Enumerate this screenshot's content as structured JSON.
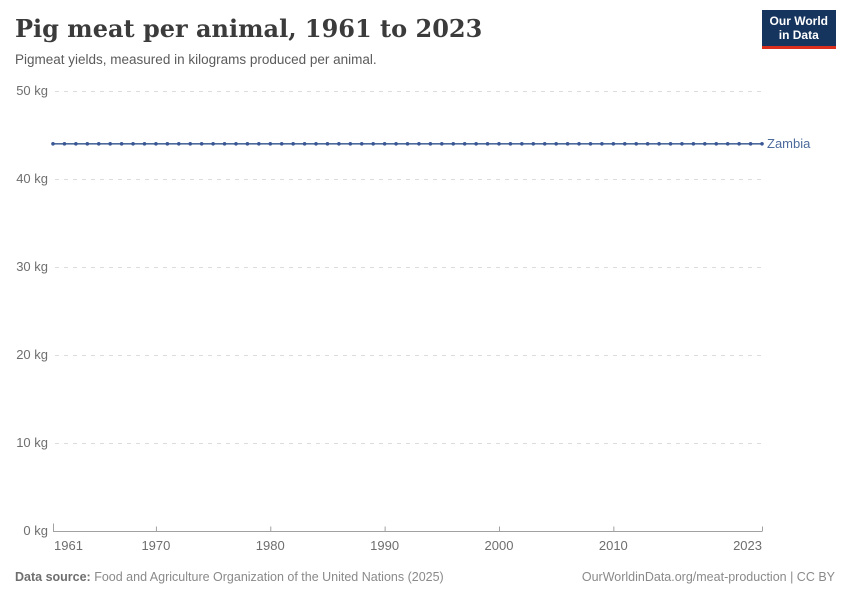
{
  "header": {
    "title": "Pig meat per animal, 1961 to 2023",
    "subtitle": "Pigmeat yields, measured in kilograms produced per animal.",
    "logo": {
      "line1": "Our World",
      "line2": "in Data"
    }
  },
  "chart_data": {
    "type": "line",
    "title": "Pig meat per animal, 1961 to 2023",
    "subtitle": "Pigmeat yields, measured in kilograms produced per animal.",
    "xlabel": "",
    "ylabel": "",
    "xlim": [
      1961,
      2023
    ],
    "ylim": [
      0,
      50
    ],
    "x_ticks": [
      1961,
      1970,
      1980,
      1990,
      2000,
      2010,
      2023
    ],
    "y_ticks": [
      0,
      10,
      20,
      30,
      40,
      50
    ],
    "y_tick_suffix": " kg",
    "grid": "horizontal-dashed",
    "legend_position": "end-of-line-label",
    "x": [
      1961,
      1962,
      1963,
      1964,
      1965,
      1966,
      1967,
      1968,
      1969,
      1970,
      1971,
      1972,
      1973,
      1974,
      1975,
      1976,
      1977,
      1978,
      1979,
      1980,
      1981,
      1982,
      1983,
      1984,
      1985,
      1986,
      1987,
      1988,
      1989,
      1990,
      1991,
      1992,
      1993,
      1994,
      1995,
      1996,
      1997,
      1998,
      1999,
      2000,
      2001,
      2002,
      2003,
      2004,
      2005,
      2006,
      2007,
      2008,
      2009,
      2010,
      2011,
      2012,
      2013,
      2014,
      2015,
      2016,
      2017,
      2018,
      2019,
      2020,
      2021,
      2022,
      2023
    ],
    "series": [
      {
        "name": "Zambia",
        "color": "#4C6A9C",
        "dot_color": "#3a5795",
        "values": [
          44,
          44,
          44,
          44,
          44,
          44,
          44,
          44,
          44,
          44,
          44,
          44,
          44,
          44,
          44,
          44,
          44,
          44,
          44,
          44,
          44,
          44,
          44,
          44,
          44,
          44,
          44,
          44,
          44,
          44,
          44,
          44,
          44,
          44,
          44,
          44,
          44,
          44,
          44,
          44,
          44,
          44,
          44,
          44,
          44,
          44,
          44,
          44,
          44,
          44,
          44,
          44,
          44,
          44,
          44,
          44,
          44,
          44,
          44,
          44,
          44,
          44,
          44
        ]
      }
    ]
  },
  "footer": {
    "source_label": "Data source:",
    "source_text": " Food and Agriculture Organization of the United Nations (2025)",
    "link": "OurWorldinData.org/meat-production | CC BY"
  },
  "colors": {
    "series_blue": "#4C6A9C",
    "series_dot_blue": "#3a5795",
    "logo_navy": "#15345e",
    "logo_red": "#dc2e1c",
    "gridline": "#dcdcdc",
    "axis": "#a1a1a1",
    "axis_text": "#6e6e6e"
  }
}
